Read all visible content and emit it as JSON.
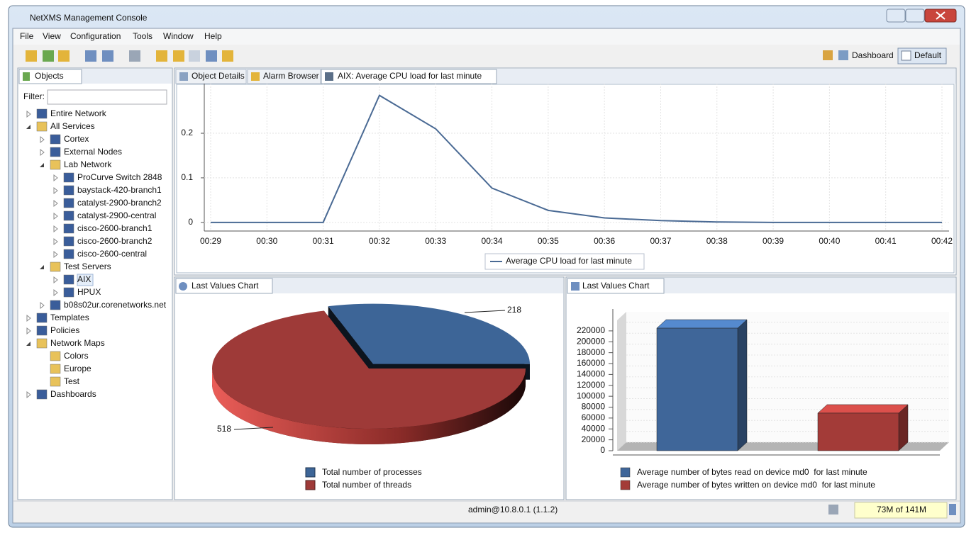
{
  "window": {
    "title": "NetXMS Management Console"
  },
  "menu": [
    "File",
    "View",
    "Configuration",
    "Tools",
    "Window",
    "Help"
  ],
  "perspectives": [
    "Dashboard",
    "Default"
  ],
  "objects": {
    "tab": "Objects",
    "filter_label": "Filter:",
    "tree": [
      {
        "label": "Entire Network",
        "state": "collapsed"
      },
      {
        "label": "All Services",
        "state": "expanded",
        "children": [
          {
            "label": "Cortex",
            "state": "collapsed"
          },
          {
            "label": "External Nodes",
            "state": "collapsed"
          },
          {
            "label": "Lab Network",
            "state": "expanded",
            "children": [
              {
                "label": "ProCurve Switch 2848",
                "state": "collapsed"
              },
              {
                "label": "baystack-420-branch1",
                "state": "collapsed"
              },
              {
                "label": "catalyst-2900-branch2",
                "state": "collapsed"
              },
              {
                "label": "catalyst-2900-central",
                "state": "collapsed"
              },
              {
                "label": "cisco-2600-branch1",
                "state": "collapsed"
              },
              {
                "label": "cisco-2600-branch2",
                "state": "collapsed"
              },
              {
                "label": "cisco-2600-central",
                "state": "collapsed"
              }
            ]
          },
          {
            "label": "Test Servers",
            "state": "expanded",
            "children": [
              {
                "label": "AIX",
                "state": "collapsed",
                "selected": true
              },
              {
                "label": "HPUX",
                "state": "collapsed"
              }
            ]
          },
          {
            "label": "b08s02ur.corenetworks.net",
            "state": "collapsed"
          }
        ]
      },
      {
        "label": "Templates",
        "state": "collapsed"
      },
      {
        "label": "Policies",
        "state": "collapsed"
      },
      {
        "label": "Network Maps",
        "state": "expanded",
        "children": [
          {
            "label": "Colors",
            "state": "leaf"
          },
          {
            "label": "Europe",
            "state": "leaf"
          },
          {
            "label": "Test",
            "state": "leaf"
          }
        ]
      },
      {
        "label": "Dashboards",
        "state": "collapsed"
      }
    ]
  },
  "tabs": [
    "Object Details",
    "Alarm Browser",
    "AIX: Average CPU load for last minute"
  ],
  "panel_tabs": [
    "Last Values Chart",
    "Last Values Chart"
  ],
  "status": {
    "user": "admin@10.8.0.1 (1.1.2)",
    "memory": "73M of 141M"
  },
  "chart_data": [
    {
      "type": "line",
      "categories": [
        "00:29",
        "00:30",
        "00:31",
        "00:32",
        "00:33",
        "00:34",
        "00:35",
        "00:36",
        "00:37",
        "00:38",
        "00:39",
        "00:40",
        "00:41",
        "00:42"
      ],
      "series": [
        {
          "name": "Average CPU load for last minute",
          "color": "#4a6a94",
          "values": [
            0,
            0,
            0,
            0.285,
            0.21,
            0.077,
            0.027,
            0.01,
            0.004,
            0.001,
            0,
            0,
            0,
            0
          ]
        }
      ],
      "ylim": [
        -0.013,
        0.305
      ],
      "yticks": [
        0,
        0.1,
        0.2
      ],
      "grid": true,
      "legend": "bottom"
    },
    {
      "type": "pie",
      "categories": [
        "Total number of processes",
        "Total number of threads"
      ],
      "values": [
        218,
        518
      ],
      "colors": [
        "#3d6597",
        "#9e3a38"
      ],
      "legend": "bottom"
    },
    {
      "type": "bar",
      "series": [
        {
          "name": "Average number of bytes read on device md0  for last minute",
          "color": "#3f6699",
          "values": [
            225000
          ]
        },
        {
          "name": "Average number of bytes written on device md0  for last minute",
          "color": "#a33b38",
          "values": [
            69000
          ]
        }
      ],
      "ylim": [
        0,
        255000
      ],
      "yticks": [
        0,
        20000,
        40000,
        60000,
        80000,
        100000,
        120000,
        140000,
        160000,
        180000,
        200000,
        220000
      ],
      "grid": true,
      "legend": "bottom"
    }
  ]
}
